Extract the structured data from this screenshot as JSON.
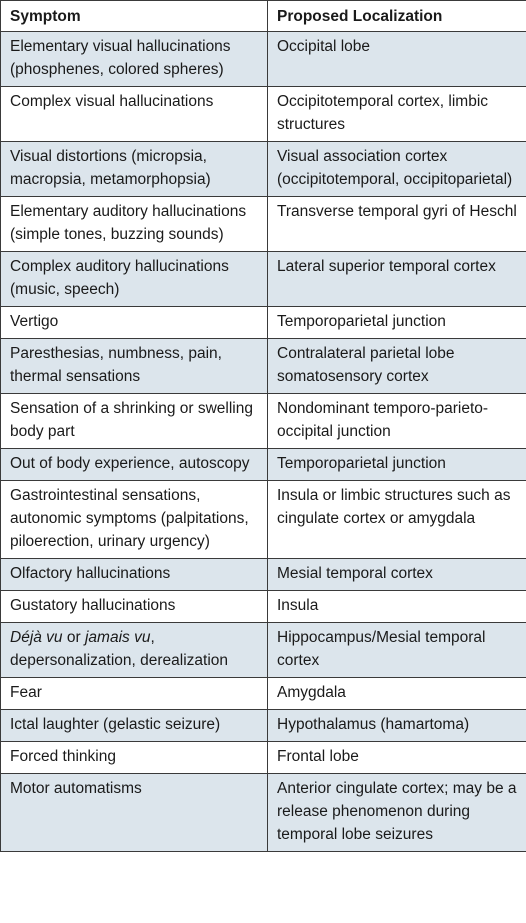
{
  "table": {
    "headers": {
      "symptom": "Symptom",
      "localization": "Proposed Localization"
    },
    "rows": [
      {
        "symptom": "Elementary visual hallucinations (phosphenes, colored spheres)",
        "localization": "Occipital lobe"
      },
      {
        "symptom": "Complex visual hallucinations",
        "localization": "Occipitotemporal cortex, limbic structures"
      },
      {
        "symptom": "Visual distortions (micropsia, macropsia, metamorphopsia)",
        "localization": "Visual association cortex (occipitotemporal, occipitoparietal)"
      },
      {
        "symptom": "Elementary auditory hallucinations (simple tones, buzzing sounds)",
        "localization": "Transverse temporal gyri of Heschl"
      },
      {
        "symptom": "Complex auditory hallucinations (music, speech)",
        "localization": "Lateral superior temporal cortex"
      },
      {
        "symptom": "Vertigo",
        "localization": "Temporoparietal junction"
      },
      {
        "symptom": "Paresthesias, numbness, pain, thermal sensations",
        "localization": "Contralateral parietal lobe somatosensory cortex"
      },
      {
        "symptom": "Sensation of a shrinking or swelling body part",
        "localization": "Nondominant temporo-parieto-occipital junction"
      },
      {
        "symptom": "Out of body experience, autoscopy",
        "localization": "Temporoparietal junction"
      },
      {
        "symptom": "Gastrointestinal sensations, autonomic symptoms (palpitations, piloerection, urinary urgency)",
        "localization": "Insula or limbic structures such as cingulate cortex or amygdala"
      },
      {
        "symptom": "Olfactory hallucinations",
        "localization": "Mesial temporal cortex"
      },
      {
        "symptom": "Gustatory hallucinations",
        "localization": "Insula"
      },
      {
        "symptom_parts": {
          "a": "Déjà vu",
          "b": " or ",
          "c": "jamais vu",
          "d": ", depersonalization, derealization"
        },
        "localization": "Hippocampus/Mesial temporal cortex"
      },
      {
        "symptom": "Fear",
        "localization": "Amygdala"
      },
      {
        "symptom": "Ictal laughter (gelastic seizure)",
        "localization": "Hypothalamus (hamartoma)"
      },
      {
        "symptom": "Forced thinking",
        "localization": "Frontal lobe"
      },
      {
        "symptom": "Motor automatisms",
        "localization": "Anterior cingulate cortex; may be a release phenomenon during temporal lobe seizures"
      }
    ]
  }
}
